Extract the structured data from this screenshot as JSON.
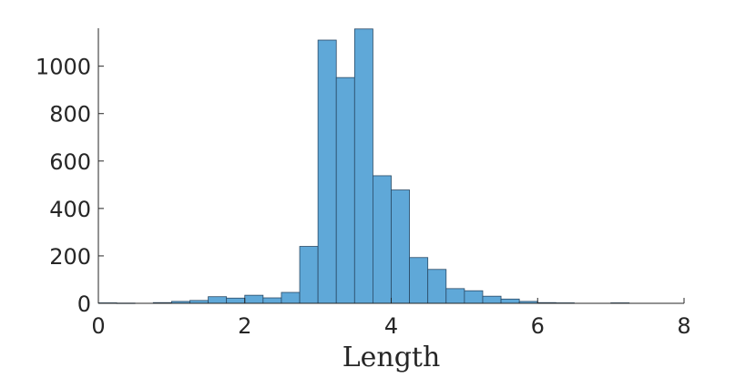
{
  "chart_data": {
    "type": "histogram",
    "title": "",
    "xlabel": "Length",
    "ylabel": "",
    "xlim": [
      0,
      8
    ],
    "ylim": [
      0,
      1160
    ],
    "bin_width": 0.25,
    "x_ticks": [
      "0",
      "2",
      "4",
      "6",
      "8"
    ],
    "y_ticks": [
      "0",
      "200",
      "400",
      "600",
      "800",
      "1000"
    ],
    "bins": [
      {
        "x0": 0.0,
        "value": 2
      },
      {
        "x0": 0.25,
        "value": 1
      },
      {
        "x0": 0.5,
        "value": 0
      },
      {
        "x0": 0.75,
        "value": 3
      },
      {
        "x0": 1.0,
        "value": 8
      },
      {
        "x0": 1.25,
        "value": 12
      },
      {
        "x0": 1.5,
        "value": 28
      },
      {
        "x0": 1.75,
        "value": 22
      },
      {
        "x0": 2.0,
        "value": 34
      },
      {
        "x0": 2.25,
        "value": 23
      },
      {
        "x0": 2.5,
        "value": 46
      },
      {
        "x0": 2.75,
        "value": 240
      },
      {
        "x0": 3.0,
        "value": 1110
      },
      {
        "x0": 3.25,
        "value": 952
      },
      {
        "x0": 3.5,
        "value": 1157
      },
      {
        "x0": 3.75,
        "value": 538
      },
      {
        "x0": 4.0,
        "value": 478
      },
      {
        "x0": 4.25,
        "value": 193
      },
      {
        "x0": 4.5,
        "value": 143
      },
      {
        "x0": 4.75,
        "value": 62
      },
      {
        "x0": 5.0,
        "value": 53
      },
      {
        "x0": 5.25,
        "value": 30
      },
      {
        "x0": 5.5,
        "value": 18
      },
      {
        "x0": 5.75,
        "value": 8
      },
      {
        "x0": 6.0,
        "value": 3
      },
      {
        "x0": 6.25,
        "value": 2
      },
      {
        "x0": 6.5,
        "value": 0
      },
      {
        "x0": 6.75,
        "value": 0
      },
      {
        "x0": 7.0,
        "value": 2
      },
      {
        "x0": 7.25,
        "value": 0
      },
      {
        "x0": 7.5,
        "value": 0
      },
      {
        "x0": 7.75,
        "value": 0
      }
    ],
    "grid": false,
    "legend": "none",
    "colors": {
      "bar_fill": "#5fa8d8",
      "bar_edge": "#2a4a66",
      "axis": "#262626"
    }
  }
}
